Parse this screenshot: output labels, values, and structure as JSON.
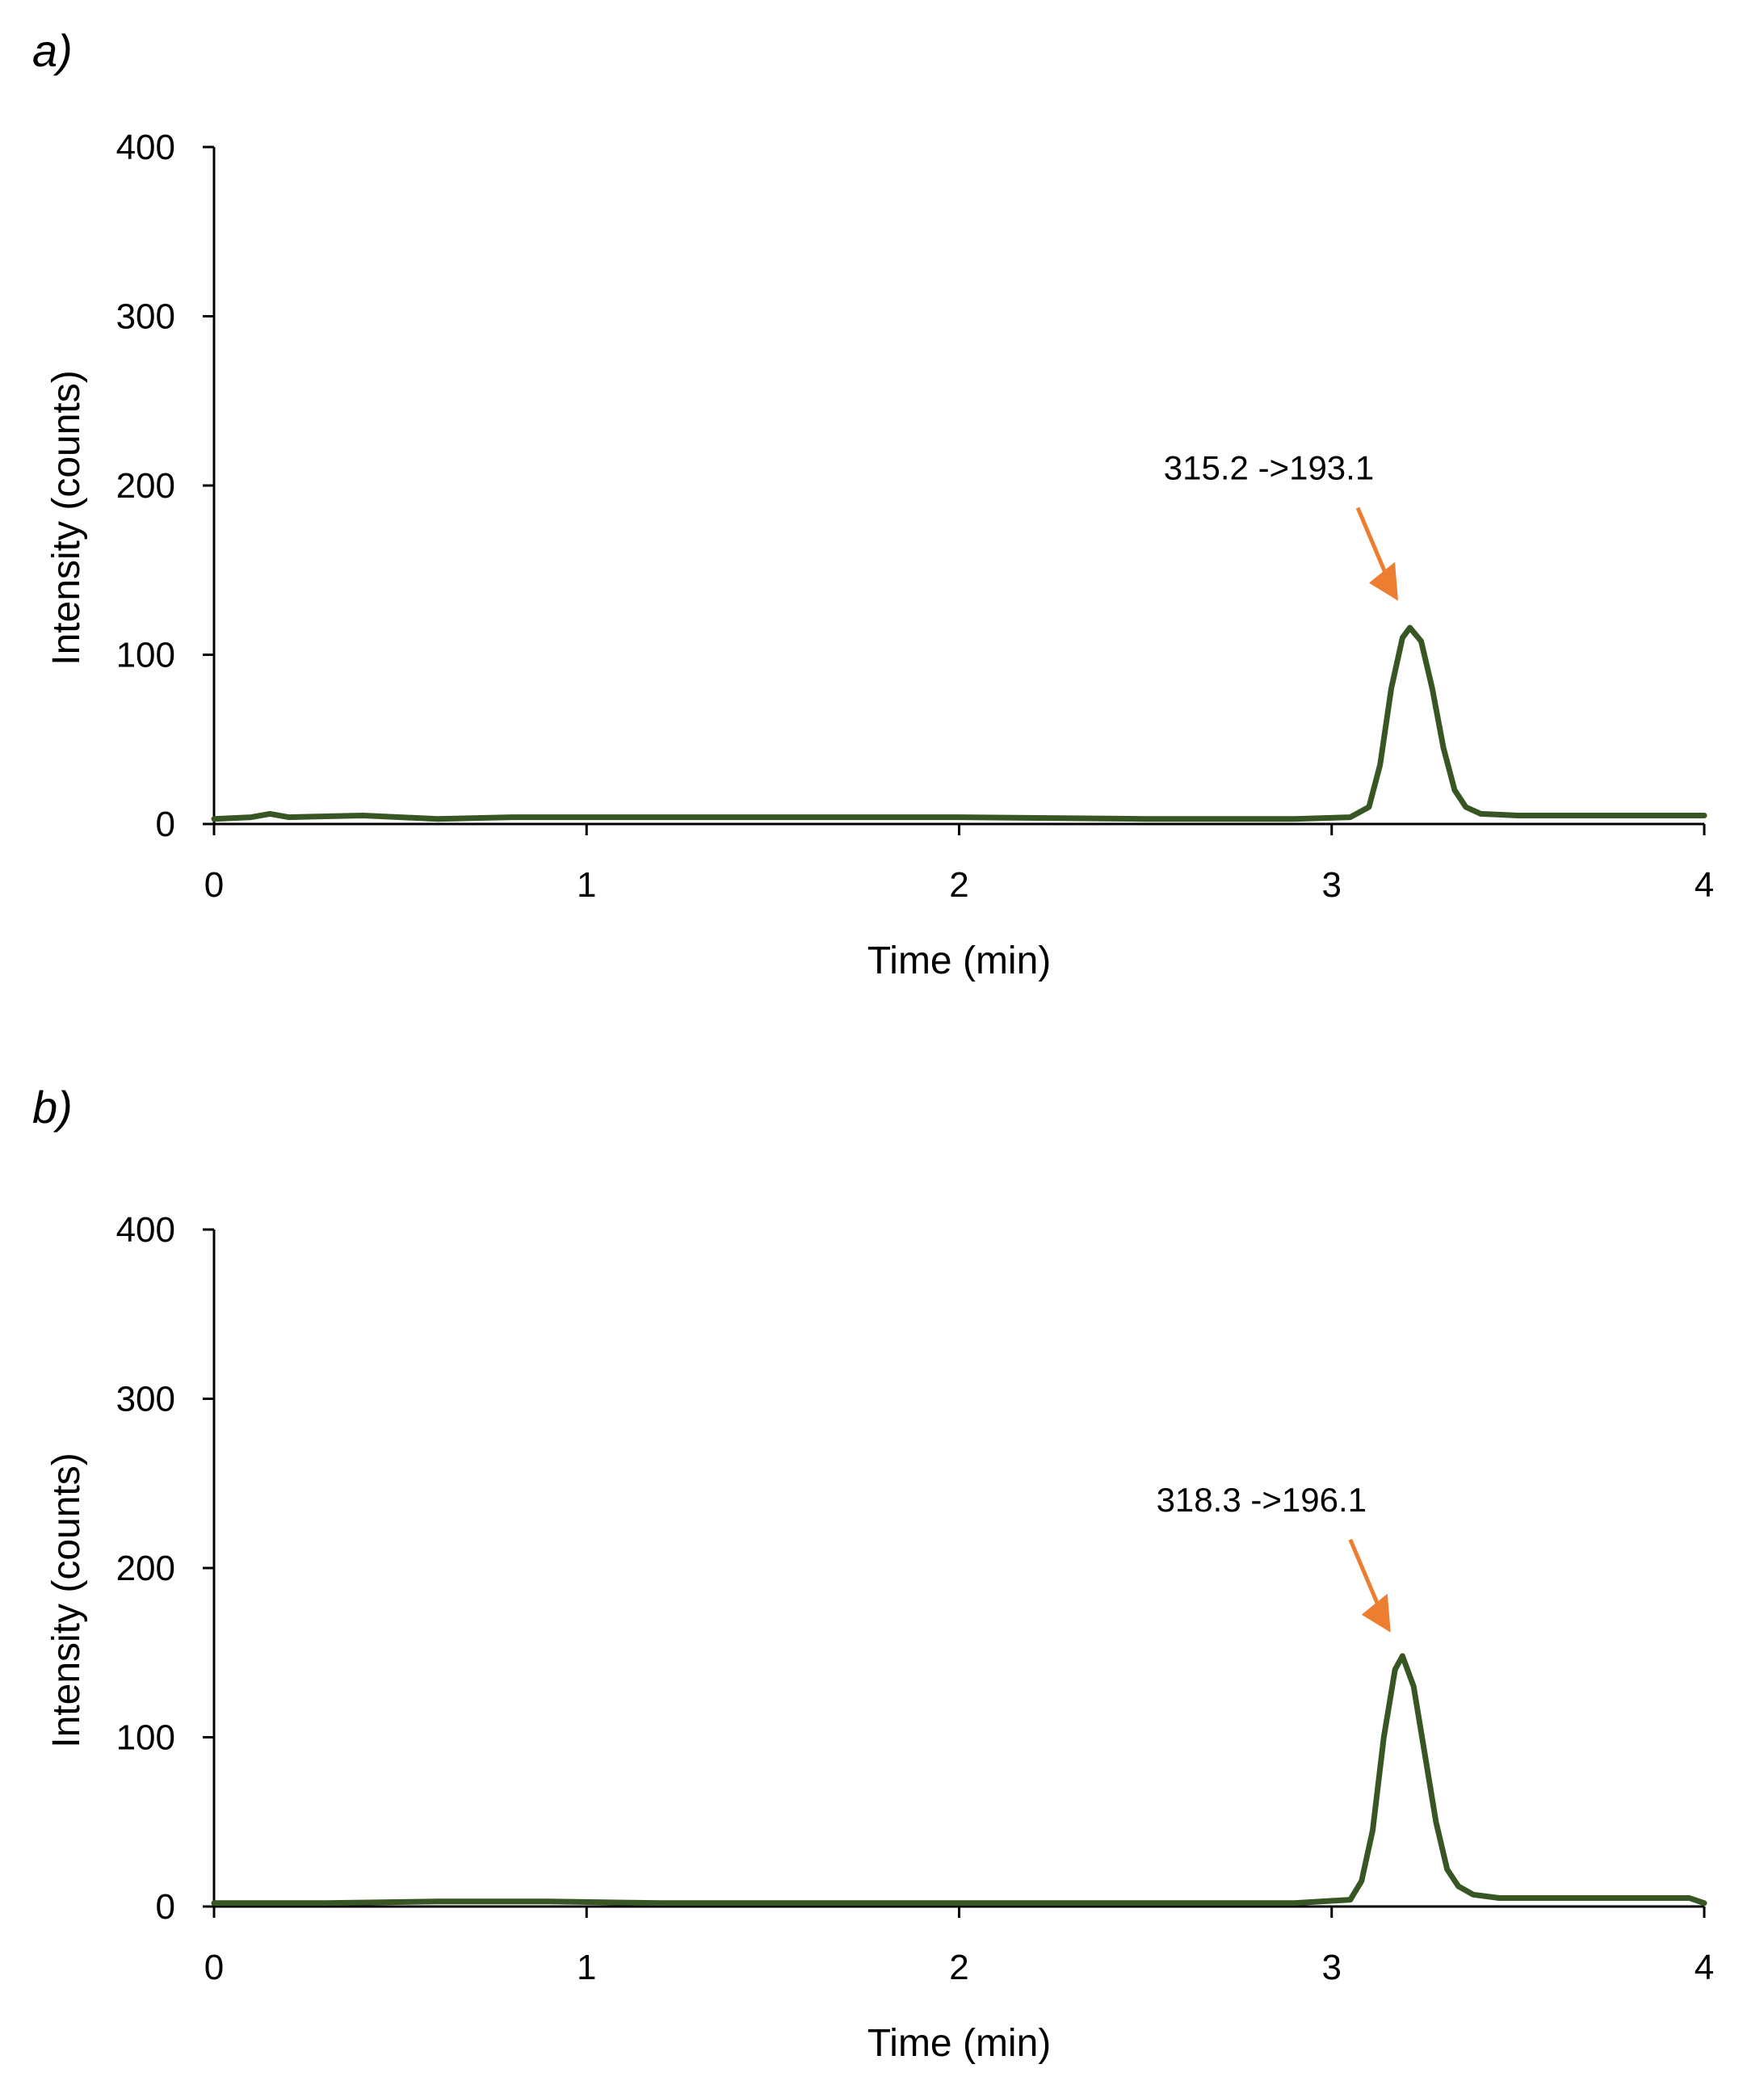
{
  "colors": {
    "series": "#375623",
    "arrow": "#ED7D31",
    "axis": "#000000"
  },
  "chart_data": [
    {
      "type": "line",
      "panel_label": "a)",
      "xlabel": "Time (min)",
      "ylabel": "Intensity (counts)",
      "xlim": [
        0,
        4
      ],
      "ylim": [
        0,
        400
      ],
      "xticks": [
        "0",
        "1",
        "2",
        "3",
        "4"
      ],
      "yticks": [
        "0",
        "100",
        "200",
        "300",
        "400"
      ],
      "grid": false,
      "series": [
        {
          "name": "315.2 ->193.1",
          "x": [
            0,
            0.1,
            0.15,
            0.2,
            0.4,
            0.6,
            0.8,
            1.0,
            1.5,
            2.0,
            2.5,
            2.9,
            3.05,
            3.1,
            3.13,
            3.16,
            3.19,
            3.21,
            3.24,
            3.27,
            3.3,
            3.33,
            3.36,
            3.4,
            3.5,
            3.7,
            4.0
          ],
          "y": [
            3,
            4,
            6,
            4,
            5,
            3,
            4,
            4,
            4,
            4,
            3,
            3,
            4,
            10,
            35,
            80,
            110,
            116,
            108,
            80,
            45,
            20,
            10,
            6,
            5,
            5,
            5
          ]
        }
      ],
      "annotations": [
        {
          "text": "315.2 ->193.1",
          "x": 3.2,
          "y": 120
        }
      ]
    },
    {
      "type": "line",
      "panel_label": "b)",
      "xlabel": "Time (min)",
      "ylabel": "Intensity (counts)",
      "xlim": [
        0,
        4
      ],
      "ylim": [
        0,
        400
      ],
      "xticks": [
        "0",
        "1",
        "2",
        "3",
        "4"
      ],
      "yticks": [
        "0",
        "100",
        "200",
        "300",
        "400"
      ],
      "grid": false,
      "series": [
        {
          "name": "318.3 ->196.1",
          "x": [
            0,
            0.3,
            0.6,
            0.9,
            1.2,
            1.5,
            2.0,
            2.5,
            2.9,
            3.05,
            3.08,
            3.11,
            3.14,
            3.17,
            3.19,
            3.22,
            3.25,
            3.28,
            3.31,
            3.34,
            3.38,
            3.45,
            3.6,
            3.8,
            3.96,
            4.0
          ],
          "y": [
            2,
            2,
            3,
            3,
            2,
            2,
            2,
            2,
            2,
            4,
            15,
            45,
            100,
            140,
            148,
            130,
            90,
            50,
            22,
            12,
            7,
            5,
            5,
            5,
            5,
            2
          ]
        }
      ],
      "annotations": [
        {
          "text": "318.3 ->196.1",
          "x": 3.18,
          "y": 150
        }
      ]
    }
  ]
}
